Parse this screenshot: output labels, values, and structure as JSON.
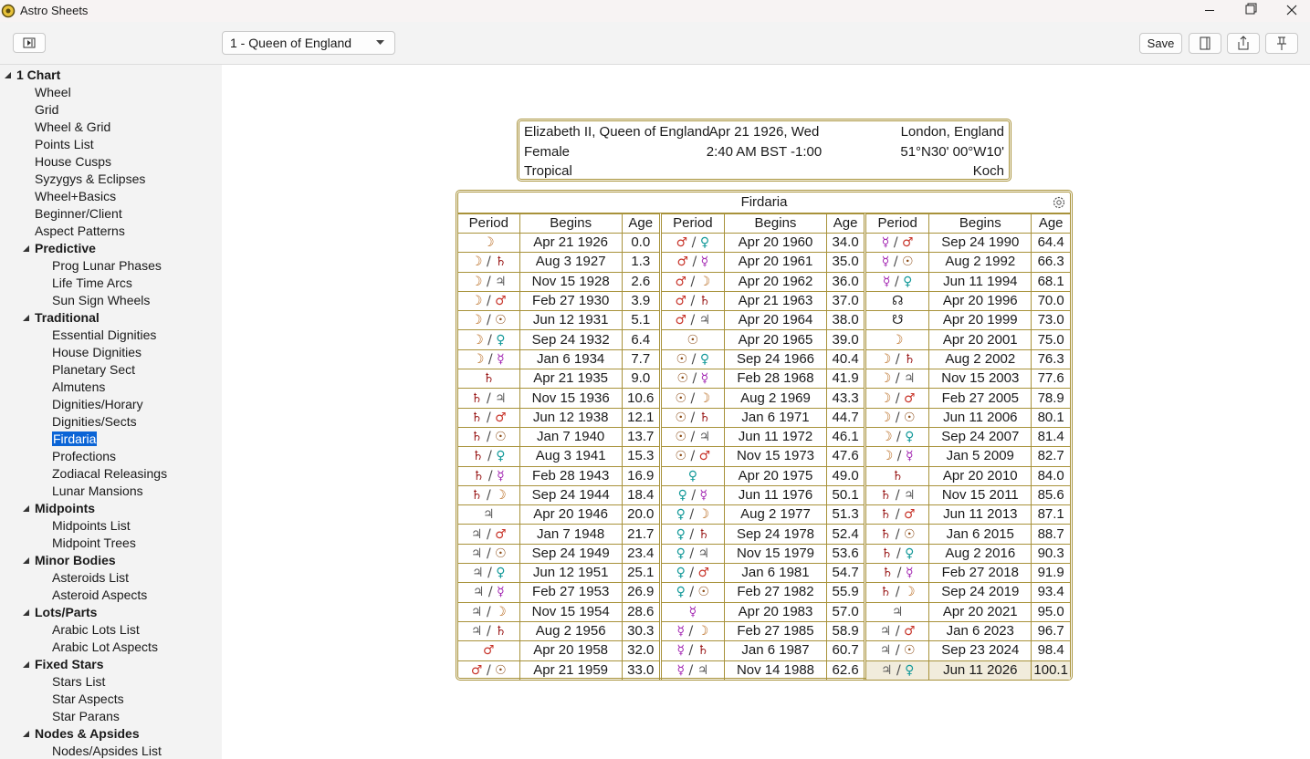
{
  "window": {
    "title": "Astro Sheets"
  },
  "toolbar": {
    "chart_select": "1 - Queen of England",
    "save": "Save"
  },
  "sidebar": {
    "root": "1 Chart",
    "items": [
      "Wheel",
      "Grid",
      "Wheel & Grid",
      "Points List",
      "House Cusps",
      "Syzygys & Eclipses",
      "Wheel+Basics",
      "Beginner/Client",
      "Aspect Patterns"
    ],
    "groups": [
      {
        "label": "Predictive",
        "items": [
          "Prog Lunar Phases",
          "Life Time Arcs",
          "Sun Sign Wheels"
        ]
      },
      {
        "label": "Traditional",
        "items": [
          "Essential Dignities",
          "House Dignities",
          "Planetary Sect",
          "Almutens",
          "Dignities/Horary",
          "Dignities/Sects",
          "Firdaria",
          "Profections",
          "Zodiacal Releasings",
          "Lunar Mansions"
        ]
      },
      {
        "label": "Midpoints",
        "items": [
          "Midpoints List",
          "Midpoint Trees"
        ]
      },
      {
        "label": "Minor Bodies",
        "items": [
          "Asteroids List",
          "Asteroid Aspects"
        ]
      },
      {
        "label": "Lots/Parts",
        "items": [
          "Arabic Lots List",
          "Arabic Lot Aspects"
        ]
      },
      {
        "label": "Fixed Stars",
        "items": [
          "Stars List",
          "Star Aspects",
          "Star Parans"
        ]
      },
      {
        "label": "Nodes & Apsides",
        "items": [
          "Nodes/Apsides List"
        ]
      }
    ],
    "selected": "sidebar.groups.1.items.6"
  },
  "header": {
    "left": [
      "Elizabeth II, Queen of England",
      "Female",
      "Tropical"
    ],
    "center": [
      "Apr 21 1926, Wed",
      "2:40 AM BST -1:00"
    ],
    "right": [
      "London, England",
      "51°N30' 00°W10'",
      "Koch"
    ]
  },
  "table": {
    "title": "Firdaria",
    "columns": [
      "Period",
      "Begins",
      "Age"
    ],
    "planet_colors": {
      "☽": "#b86a1e",
      "♄": "#9b1b1b",
      "♃": "#5a5a5a",
      "♂": "#c8362c",
      "☉": "#8a4a14",
      "♀": "#159a9a",
      "☿": "#a020b0",
      "☊": "#222222",
      "☋": "#222222"
    },
    "highlight": "table.groups.2.rows.22",
    "groups": [
      {
        "rows": [
          [
            "☽",
            "Apr 21 1926",
            "0.0"
          ],
          [
            "☽ / ♄",
            "Aug 3 1927",
            "1.3"
          ],
          [
            "☽ / ♃",
            "Nov 15 1928",
            "2.6"
          ],
          [
            "☽ / ♂",
            "Feb 27 1930",
            "3.9"
          ],
          [
            "☽ / ☉",
            "Jun 12 1931",
            "5.1"
          ],
          [
            "☽ / ♀",
            "Sep 24 1932",
            "6.4"
          ],
          [
            "☽ / ☿",
            "Jan 6 1934",
            "7.7"
          ],
          [
            "♄",
            "Apr 21 1935",
            "9.0"
          ],
          [
            "♄ / ♃",
            "Nov 15 1936",
            "10.6"
          ],
          [
            "♄ / ♂",
            "Jun 12 1938",
            "12.1"
          ],
          [
            "♄ / ☉",
            "Jan 7 1940",
            "13.7"
          ],
          [
            "♄ / ♀",
            "Aug 3 1941",
            "15.3"
          ],
          [
            "♄ / ☿",
            "Feb 28 1943",
            "16.9"
          ],
          [
            "♄ / ☽",
            "Sep 24 1944",
            "18.4"
          ],
          [
            "♃",
            "Apr 20 1946",
            "20.0"
          ],
          [
            "♃ / ♂",
            "Jan 7 1948",
            "21.7"
          ],
          [
            "♃ / ☉",
            "Sep 24 1949",
            "23.4"
          ],
          [
            "♃ / ♀",
            "Jun 12 1951",
            "25.1"
          ],
          [
            "♃ / ☿",
            "Feb 27 1953",
            "26.9"
          ],
          [
            "♃ / ☽",
            "Nov 15 1954",
            "28.6"
          ],
          [
            "♃ / ♄",
            "Aug 2 1956",
            "30.3"
          ],
          [
            "♂",
            "Apr 20 1958",
            "32.0"
          ],
          [
            "♂ / ☉",
            "Apr 21 1959",
            "33.0"
          ]
        ]
      },
      {
        "rows": [
          [
            "♂ / ♀",
            "Apr 20 1960",
            "34.0"
          ],
          [
            "♂ / ☿",
            "Apr 20 1961",
            "35.0"
          ],
          [
            "♂ / ☽",
            "Apr 20 1962",
            "36.0"
          ],
          [
            "♂ / ♄",
            "Apr 21 1963",
            "37.0"
          ],
          [
            "♂ / ♃",
            "Apr 20 1964",
            "38.0"
          ],
          [
            "☉",
            "Apr 20 1965",
            "39.0"
          ],
          [
            "☉ / ♀",
            "Sep 24 1966",
            "40.4"
          ],
          [
            "☉ / ☿",
            "Feb 28 1968",
            "41.9"
          ],
          [
            "☉ / ☽",
            "Aug 2 1969",
            "43.3"
          ],
          [
            "☉ / ♄",
            "Jan 6 1971",
            "44.7"
          ],
          [
            "☉ / ♃",
            "Jun 11 1972",
            "46.1"
          ],
          [
            "☉ / ♂",
            "Nov 15 1973",
            "47.6"
          ],
          [
            "♀",
            "Apr 20 1975",
            "49.0"
          ],
          [
            "♀ / ☿",
            "Jun 11 1976",
            "50.1"
          ],
          [
            "♀ / ☽",
            "Aug 2 1977",
            "51.3"
          ],
          [
            "♀ / ♄",
            "Sep 24 1978",
            "52.4"
          ],
          [
            "♀ / ♃",
            "Nov 15 1979",
            "53.6"
          ],
          [
            "♀ / ♂",
            "Jan 6 1981",
            "54.7"
          ],
          [
            "♀ / ☉",
            "Feb 27 1982",
            "55.9"
          ],
          [
            "☿",
            "Apr 20 1983",
            "57.0"
          ],
          [
            "☿ / ☽",
            "Feb 27 1985",
            "58.9"
          ],
          [
            "☿ / ♄",
            "Jan 6 1987",
            "60.7"
          ],
          [
            "☿ / ♃",
            "Nov 14 1988",
            "62.6"
          ]
        ]
      },
      {
        "rows": [
          [
            "☿ / ♂",
            "Sep 24 1990",
            "64.4"
          ],
          [
            "☿ / ☉",
            "Aug 2 1992",
            "66.3"
          ],
          [
            "☿ / ♀",
            "Jun 11 1994",
            "68.1"
          ],
          [
            "☊",
            "Apr 20 1996",
            "70.0"
          ],
          [
            "☋",
            "Apr 20 1999",
            "73.0"
          ],
          [
            "☽",
            "Apr 20 2001",
            "75.0"
          ],
          [
            "☽ / ♄",
            "Aug 2 2002",
            "76.3"
          ],
          [
            "☽ / ♃",
            "Nov 15 2003",
            "77.6"
          ],
          [
            "☽ / ♂",
            "Feb 27 2005",
            "78.9"
          ],
          [
            "☽ / ☉",
            "Jun 11 2006",
            "80.1"
          ],
          [
            "☽ / ♀",
            "Sep 24 2007",
            "81.4"
          ],
          [
            "☽ / ☿",
            "Jan 5 2009",
            "82.7"
          ],
          [
            "♄",
            "Apr 20 2010",
            "84.0"
          ],
          [
            "♄ / ♃",
            "Nov 15 2011",
            "85.6"
          ],
          [
            "♄ / ♂",
            "Jun 11 2013",
            "87.1"
          ],
          [
            "♄ / ☉",
            "Jan 6 2015",
            "88.7"
          ],
          [
            "♄ / ♀",
            "Aug 2 2016",
            "90.3"
          ],
          [
            "♄ / ☿",
            "Feb 27 2018",
            "91.9"
          ],
          [
            "♄ / ☽",
            "Sep 24 2019",
            "93.4"
          ],
          [
            "♃",
            "Apr 20 2021",
            "95.0"
          ],
          [
            "♃ / ♂",
            "Jan 6 2023",
            "96.7"
          ],
          [
            "♃ / ☉",
            "Sep 23 2024",
            "98.4"
          ],
          [
            "♃ / ♀",
            "Jun 11 2026",
            "100.1"
          ]
        ]
      }
    ]
  }
}
